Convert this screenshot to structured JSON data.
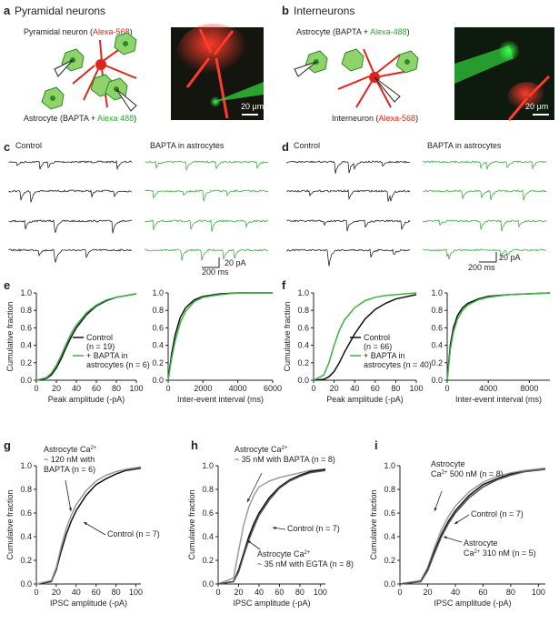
{
  "panels": {
    "a": {
      "letter": "a",
      "title": "Pyramidal neurons",
      "neuron_label": [
        "Pyramidal neuron (",
        "Alexa-568",
        ")"
      ],
      "astro_label": [
        "Astrocyte (BAPTA + ",
        "Alexa 488",
        ")"
      ],
      "scale": "20 μm"
    },
    "b": {
      "letter": "b",
      "title": "Interneurons",
      "astro_label": [
        "Astrocyte (BAPTA + ",
        "Alexa-488",
        ")"
      ],
      "neuron_label": [
        "Interneuron  (",
        "Alexa-568",
        ")"
      ],
      "scale": "20 μm"
    },
    "c": {
      "letter": "c",
      "control": "Control",
      "bapta": "BAPTA in astrocytes",
      "time_scale": "200 ms",
      "current_scale": "20 pA"
    },
    "d": {
      "letter": "d",
      "control": "Control",
      "bapta": "BAPTA in astrocytes",
      "time_scale": "200 ms",
      "current_scale": "20 pA"
    },
    "e": {
      "letter": "e"
    },
    "f": {
      "letter": "f"
    },
    "g": {
      "letter": "g"
    },
    "h": {
      "letter": "h"
    },
    "i": {
      "letter": "i"
    }
  },
  "chart_data": [
    {
      "type": "line",
      "xlabel": "Peak amplitude (-pA)",
      "ylabel": "Cumulative fraction",
      "xlim": [
        0,
        100
      ],
      "xticks": [
        0,
        20,
        40,
        60,
        80,
        100
      ],
      "ylim": [
        0,
        1
      ],
      "yticks": [
        {
          "value": 0,
          "label": "0.0"
        },
        0.2,
        0.4,
        0.6,
        0.8,
        {
          "value": 1,
          "label": "1.0"
        }
      ],
      "x": [
        0,
        10,
        15,
        20,
        25,
        30,
        35,
        40,
        50,
        60,
        70,
        80,
        100
      ],
      "legend": "lower right",
      "series": [
        {
          "name": "Control",
          "legend_lines": [
            "(n = 19)"
          ],
          "color": "#111111",
          "values": [
            0,
            0.02,
            0.06,
            0.14,
            0.25,
            0.38,
            0.5,
            0.6,
            0.75,
            0.85,
            0.91,
            0.95,
            0.99
          ]
        },
        {
          "name": "+ BAPTA in",
          "legend_lines": [
            "astrocytes (n = 6)"
          ],
          "color": "#3cb043",
          "values": [
            0,
            0.03,
            0.08,
            0.17,
            0.29,
            0.42,
            0.54,
            0.63,
            0.77,
            0.86,
            0.92,
            0.95,
            0.99
          ]
        }
      ]
    },
    {
      "type": "line",
      "xlabel": "Inter-event interval (ms)",
      "xlim": [
        0,
        6000
      ],
      "xticks": [
        0,
        2000,
        4000,
        6000
      ],
      "ylim": [
        0,
        1
      ],
      "yticks": [
        {
          "value": 0,
          "label": "0.0"
        },
        0.2,
        0.4,
        0.6,
        0.8,
        {
          "value": 1,
          "label": "1.0"
        }
      ],
      "x": [
        0,
        200,
        400,
        700,
        1000,
        1500,
        2000,
        3000,
        4000,
        6000
      ],
      "series": [
        {
          "color": "#111111",
          "values": [
            0,
            0.3,
            0.52,
            0.72,
            0.83,
            0.92,
            0.96,
            0.99,
            1,
            1
          ]
        },
        {
          "color": "#3cb043",
          "values": [
            0,
            0.25,
            0.45,
            0.66,
            0.79,
            0.9,
            0.95,
            0.98,
            1,
            1
          ]
        }
      ]
    },
    {
      "type": "line",
      "xlabel": "Peak amplitude (-pA)",
      "ylabel": "Cumulative fraction",
      "xlim": [
        0,
        100
      ],
      "xticks": [
        0,
        20,
        40,
        60,
        80,
        100
      ],
      "ylim": [
        0,
        1
      ],
      "yticks": [
        {
          "value": 0,
          "label": "0.0"
        },
        0.2,
        0.4,
        0.6,
        0.8,
        {
          "value": 1,
          "label": "1.0"
        }
      ],
      "x": [
        0,
        10,
        15,
        20,
        25,
        30,
        40,
        50,
        60,
        70,
        80,
        100
      ],
      "legend": "lower right",
      "series": [
        {
          "name": "Control",
          "legend_lines": [
            "(n = 66)"
          ],
          "color": "#111111",
          "values": [
            0,
            0.01,
            0.04,
            0.1,
            0.2,
            0.32,
            0.53,
            0.7,
            0.81,
            0.88,
            0.93,
            0.98
          ]
        },
        {
          "name": "+ BAPTA in",
          "legend_lines": [
            "astrocytes (n = 40)"
          ],
          "color": "#3cb043",
          "values": [
            0,
            0.06,
            0.2,
            0.4,
            0.57,
            0.69,
            0.83,
            0.91,
            0.95,
            0.97,
            0.98,
            1
          ]
        }
      ]
    },
    {
      "type": "line",
      "xlabel": "Inter-event interval (ms)",
      "xlim": [
        0,
        10000
      ],
      "xticks": [
        0,
        4000,
        8000
      ],
      "ylim": [
        0,
        1
      ],
      "yticks": [
        {
          "value": 0,
          "label": "0.0"
        },
        0.2,
        0.4,
        0.6,
        0.8,
        {
          "value": 1,
          "label": "1.0"
        }
      ],
      "x": [
        0,
        300,
        600,
        1000,
        1500,
        2000,
        3000,
        4000,
        6000,
        8000,
        10000
      ],
      "series": [
        {
          "color": "#111111",
          "values": [
            0,
            0.4,
            0.6,
            0.74,
            0.83,
            0.88,
            0.93,
            0.96,
            0.98,
            0.99,
            1
          ]
        },
        {
          "color": "#3cb043",
          "values": [
            0,
            0.35,
            0.55,
            0.7,
            0.8,
            0.86,
            0.92,
            0.95,
            0.98,
            0.99,
            1
          ]
        }
      ]
    },
    {
      "type": "line",
      "xlabel": "IPSC amplitude (-pA)",
      "ylabel": "Cumulative fraction",
      "xlim": [
        0,
        105
      ],
      "xticks": [
        0,
        20,
        40,
        60,
        80,
        100
      ],
      "ylim": [
        0,
        1
      ],
      "yticks": [
        {
          "value": 0,
          "label": "0.0"
        },
        0.2,
        0.4,
        0.6,
        0.8,
        {
          "value": 1,
          "label": "1.0"
        }
      ],
      "x": [
        0,
        15,
        20,
        25,
        30,
        35,
        40,
        50,
        60,
        70,
        80,
        90,
        105
      ],
      "series": [
        {
          "color": "#111111",
          "values": [
            0,
            0.02,
            0.12,
            0.28,
            0.42,
            0.53,
            0.62,
            0.75,
            0.84,
            0.89,
            0.93,
            0.96,
            0.98
          ]
        },
        {
          "color": "#9a9a9a",
          "values": [
            0,
            0.03,
            0.14,
            0.32,
            0.47,
            0.58,
            0.67,
            0.79,
            0.87,
            0.92,
            0.95,
            0.97,
            0.99
          ]
        }
      ],
      "annotations": [
        {
          "lines": [
            [
              "Astrocyte Ca",
              "2+"
            ],
            [
              "~ 120 nM with"
            ],
            [
              "BAPTA (n = 6)"
            ]
          ]
        },
        {
          "lines": [
            [
              "Control (n = 7)"
            ]
          ]
        }
      ]
    },
    {
      "type": "line",
      "xlabel": "IPSC amplitude (-pA)",
      "ylabel": "Cumulative fraction",
      "xlim": [
        0,
        105
      ],
      "xticks": [
        0,
        20,
        40,
        60,
        80,
        100
      ],
      "ylim": [
        0,
        1
      ],
      "yticks": [
        {
          "value": 0,
          "label": "0.0"
        },
        0.2,
        0.4,
        0.6,
        0.8,
        {
          "value": 1,
          "label": "1.0"
        }
      ],
      "x": [
        0,
        15,
        20,
        25,
        30,
        35,
        40,
        50,
        60,
        70,
        80,
        90,
        105
      ],
      "series": [
        {
          "color": "#9a9a9a",
          "values": [
            0,
            0.05,
            0.28,
            0.5,
            0.65,
            0.75,
            0.82,
            0.87,
            0.9,
            0.92,
            0.94,
            0.96,
            0.97
          ]
        },
        {
          "color": "#111111",
          "values": [
            0,
            0.02,
            0.12,
            0.26,
            0.4,
            0.51,
            0.6,
            0.73,
            0.82,
            0.88,
            0.92,
            0.95,
            0.97
          ]
        },
        {
          "color": "#555555",
          "values": [
            0,
            0.02,
            0.1,
            0.24,
            0.37,
            0.48,
            0.58,
            0.71,
            0.81,
            0.87,
            0.91,
            0.94,
            0.96
          ]
        }
      ],
      "annotations": [
        {
          "lines": [
            [
              "Astrocyte Ca",
              "2+"
            ],
            [
              "~ 35 nM with BAPTA (n = 8)"
            ]
          ]
        },
        {
          "lines": [
            [
              "Control (n = 7)"
            ]
          ]
        },
        {
          "lines": [
            [
              "Astrocyte Ca",
              "2+"
            ],
            [
              "~ 35 nM with EGTA (n = 8)"
            ]
          ]
        }
      ]
    },
    {
      "type": "line",
      "xlabel": "IPSC amplitude (-pA)",
      "ylabel": "Cumulative fraction",
      "xlim": [
        0,
        105
      ],
      "xticks": [
        0,
        20,
        40,
        60,
        80,
        100
      ],
      "ylim": [
        0,
        1
      ],
      "yticks": [
        {
          "value": 0,
          "label": "0.0"
        },
        0.2,
        0.4,
        0.6,
        0.8,
        {
          "value": 1,
          "label": "1.0"
        }
      ],
      "x": [
        0,
        15,
        20,
        25,
        30,
        35,
        40,
        50,
        60,
        70,
        80,
        90,
        105
      ],
      "series": [
        {
          "color": "#9a9a9a",
          "values": [
            0,
            0.03,
            0.14,
            0.31,
            0.46,
            0.57,
            0.66,
            0.78,
            0.86,
            0.91,
            0.94,
            0.96,
            0.98
          ]
        },
        {
          "color": "#111111",
          "values": [
            0,
            0.02,
            0.12,
            0.28,
            0.42,
            0.53,
            0.62,
            0.75,
            0.84,
            0.89,
            0.93,
            0.95,
            0.97
          ]
        },
        {
          "color": "#555555",
          "values": [
            0,
            0.02,
            0.11,
            0.26,
            0.4,
            0.51,
            0.6,
            0.73,
            0.82,
            0.88,
            0.92,
            0.95,
            0.97
          ]
        }
      ],
      "annotations": [
        {
          "lines": [
            [
              "Astrocyte"
            ],
            [
              "Ca",
              "2+",
              " 500 nM (n = 8)"
            ]
          ]
        },
        {
          "lines": [
            [
              "Control (n = 7)"
            ]
          ]
        },
        {
          "lines": [
            [
              "Astrocyte"
            ],
            [
              "Ca",
              "2+",
              " 310 nM (n = 5)"
            ]
          ]
        }
      ]
    }
  ]
}
